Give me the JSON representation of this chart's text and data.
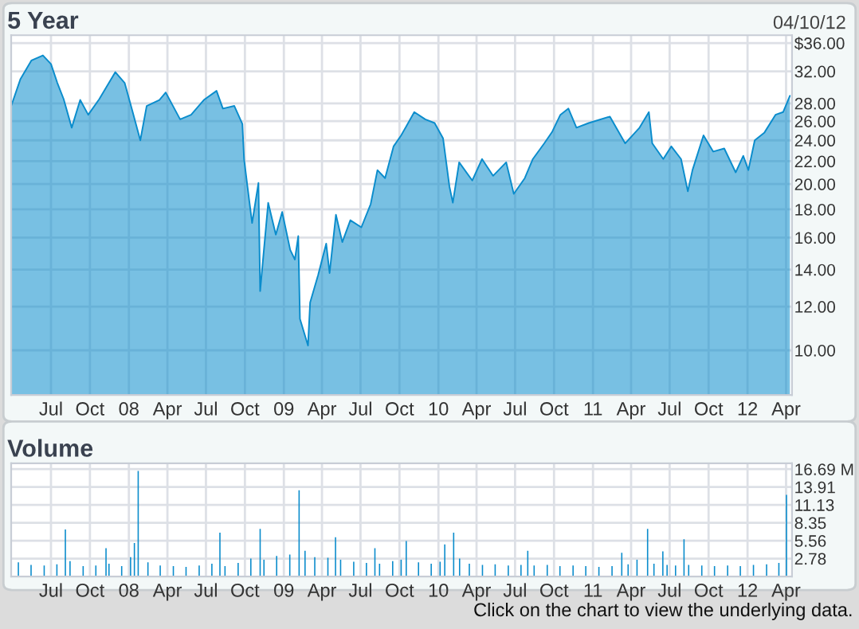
{
  "chart_data": [
    {
      "type": "area",
      "title": "5 Year",
      "annotations": [
        "04/10/12"
      ],
      "color": "#0a8ccc",
      "log": "y",
      "grid": true,
      "legend": false,
      "x": [
        "2007-03-29",
        "2007-04-20",
        "2007-05-16",
        "2007-06-12",
        "2007-07-01",
        "2007-07-16",
        "2007-07-31",
        "2007-08-19",
        "2007-09-08",
        "2007-09-27",
        "2007-10-23",
        "2007-11-30",
        "2007-12-22",
        "2008-01-10",
        "2008-01-28",
        "2008-02-12",
        "2008-03-13",
        "2008-03-28",
        "2008-05-01",
        "2008-05-27",
        "2008-06-26",
        "2008-07-26",
        "2008-08-10",
        "2008-09-06",
        "2008-09-25",
        "2008-09-29",
        "2008-10-07",
        "2008-10-18",
        "2008-11-02",
        "2008-11-06",
        "2008-11-25",
        "2008-12-13",
        "2008-12-28",
        "2009-01-16",
        "2009-01-27",
        "2009-02-04",
        "2009-02-08",
        "2009-02-27",
        "2009-03-04",
        "2009-03-23",
        "2009-04-11",
        "2009-04-19",
        "2009-05-04",
        "2009-05-19",
        "2009-06-07",
        "2009-07-03",
        "2009-07-25",
        "2009-08-10",
        "2009-08-28",
        "2009-09-17",
        "2009-10-05",
        "2009-11-05",
        "2009-12-01",
        "2009-12-23",
        "2010-01-12",
        "2010-01-27",
        "2010-02-04",
        "2010-02-19",
        "2010-03-22",
        "2010-04-14",
        "2010-05-10",
        "2010-06-10",
        "2010-06-28",
        "2010-07-24",
        "2010-08-12",
        "2010-09-08",
        "2010-09-27",
        "2010-10-16",
        "2010-11-04",
        "2010-11-23",
        "2010-12-22",
        "2011-02-10",
        "2011-03-18",
        "2011-04-21",
        "2011-05-13",
        "2011-05-21",
        "2011-06-16",
        "2011-07-05",
        "2011-07-28",
        "2011-08-13",
        "2011-08-24",
        "2011-09-19",
        "2011-10-12",
        "2011-11-07",
        "2011-12-04",
        "2011-12-22",
        "2012-01-03",
        "2012-01-18",
        "2012-02-10",
        "2012-03-07",
        "2012-03-25",
        "2012-04-10"
      ],
      "values": [
        27.7,
        31,
        33.5,
        34.2,
        33,
        30.5,
        28.5,
        25.3,
        28.4,
        26.7,
        28.5,
        31.9,
        30.5,
        27,
        24,
        27.7,
        28.4,
        29.3,
        26.2,
        26.7,
        28.4,
        29.5,
        27.4,
        27.7,
        25.7,
        22.2,
        19.8,
        17,
        20.1,
        12.8,
        18.5,
        16.2,
        17.8,
        15.2,
        14.6,
        16.1,
        11.4,
        10.2,
        12.2,
        13.7,
        15.6,
        13.8,
        17.6,
        15.7,
        17.2,
        16.7,
        18.4,
        21.2,
        20.5,
        23.4,
        24.5,
        27,
        26.2,
        25.8,
        24.2,
        19.8,
        18.5,
        21.9,
        20.3,
        22.2,
        20.7,
        21.9,
        19.2,
        20.5,
        22.2,
        23.7,
        24.9,
        26.7,
        27.4,
        25.3,
        25.8,
        26.5,
        23.7,
        25.3,
        27,
        23.7,
        22.2,
        23.4,
        22.2,
        19.4,
        21.2,
        24.5,
        22.9,
        23.2,
        21,
        22.5,
        21.2,
        24,
        24.8,
        26.7,
        27,
        28.9
      ],
      "xlim": [
        "2007-03-29",
        "2012-04-15"
      ],
      "ylim": [
        8.3,
        37.2
      ],
      "yticks": [
        {
          "value": 10,
          "label": "10.00"
        },
        {
          "value": 12,
          "label": "12.00"
        },
        {
          "value": 14,
          "label": "14.00"
        },
        {
          "value": 16,
          "label": "16.00"
        },
        {
          "value": 18,
          "label": "18.00"
        },
        {
          "value": 20,
          "label": "20.00"
        },
        {
          "value": 22,
          "label": "22.00"
        },
        {
          "value": 24,
          "label": "24.00"
        },
        {
          "value": 26,
          "label": "26.00"
        },
        {
          "value": 28,
          "label": "28.00"
        },
        {
          "value": 32,
          "label": "32.00"
        },
        {
          "value": 36,
          "label": "$36.00"
        }
      ],
      "xticks": [
        {
          "value": "2007-07-01",
          "label": "Jul"
        },
        {
          "value": "2007-10-01",
          "label": "Oct"
        },
        {
          "value": "2008-01-01",
          "label": "08"
        },
        {
          "value": "2008-04-01",
          "label": "Apr"
        },
        {
          "value": "2008-07-01",
          "label": "Jul"
        },
        {
          "value": "2008-10-01",
          "label": "Oct"
        },
        {
          "value": "2009-01-01",
          "label": "09"
        },
        {
          "value": "2009-04-01",
          "label": "Apr"
        },
        {
          "value": "2009-07-01",
          "label": "Jul"
        },
        {
          "value": "2009-10-01",
          "label": "Oct"
        },
        {
          "value": "2010-01-01",
          "label": "10"
        },
        {
          "value": "2010-04-01",
          "label": "Apr"
        },
        {
          "value": "2010-07-01",
          "label": "Jul"
        },
        {
          "value": "2010-10-01",
          "label": "Oct"
        },
        {
          "value": "2011-01-01",
          "label": "11"
        },
        {
          "value": "2011-04-01",
          "label": "Apr"
        },
        {
          "value": "2011-07-01",
          "label": "Jul"
        },
        {
          "value": "2011-10-01",
          "label": "Oct"
        },
        {
          "value": "2012-01-01",
          "label": "12"
        },
        {
          "value": "2012-04-01",
          "label": "Apr"
        }
      ]
    },
    {
      "type": "bar",
      "title": "Volume",
      "annotations": [
        "Click on the chart to view the underlying data."
      ],
      "grid": true,
      "legend": false,
      "series": [
        {
          "color": "#0a8ccc",
          "x": [
            "2007-04-15",
            "2007-05-15",
            "2007-06-15",
            "2007-07-15",
            "2007-08-15",
            "2007-09-15",
            "2007-10-15",
            "2007-11-15",
            "2007-12-15",
            "2008-01-05",
            "2008-02-15",
            "2008-03-15",
            "2008-04-15",
            "2008-05-15",
            "2008-06-15",
            "2008-07-15",
            "2008-08-15",
            "2008-09-15",
            "2008-10-15",
            "2008-11-15",
            "2008-12-15",
            "2009-01-15",
            "2009-02-20",
            "2009-03-15",
            "2009-04-15",
            "2009-05-15",
            "2009-06-15",
            "2009-07-15",
            "2009-08-15",
            "2009-09-15",
            "2009-10-05",
            "2009-11-15",
            "2009-12-15",
            "2010-01-05",
            "2010-02-20",
            "2010-03-15",
            "2010-04-15",
            "2010-05-15",
            "2010-06-15",
            "2010-07-15",
            "2010-08-15",
            "2010-09-15",
            "2010-10-15",
            "2010-11-15",
            "2010-12-15",
            "2011-01-15",
            "2011-02-15",
            "2011-03-25",
            "2011-04-15",
            "2011-05-25",
            "2011-06-25",
            "2011-07-15",
            "2011-08-15",
            "2011-09-15",
            "2011-10-15",
            "2011-11-15",
            "2011-12-15",
            "2012-01-15",
            "2012-02-15",
            "2012-03-15"
          ],
          "values": [
            2.2,
            1.8,
            1.7,
            1.9,
            2.4,
            1.6,
            1.7,
            2.0,
            1.6,
            3.0,
            2.2,
            1.7,
            1.6,
            1.5,
            1.7,
            2.0,
            1.6,
            2.1,
            2.8,
            2.6,
            3.2,
            3.4,
            4.0,
            3.0,
            2.9,
            2.6,
            2.3,
            2.1,
            2.0,
            2.4,
            2.6,
            2.2,
            2.0,
            2.3,
            2.8,
            2.0,
            1.8,
            1.9,
            1.7,
            1.8,
            1.7,
            1.8,
            1.6,
            1.7,
            1.6,
            1.5,
            1.6,
            1.9,
            2.6,
            2.0,
            1.8,
            1.7,
            1.8,
            1.7,
            1.6,
            1.7,
            1.6,
            1.8,
            1.9,
            2.1
          ]
        },
        {
          "color": "#0a8ccc",
          "x": [
            "2007-08-04",
            "2007-11-08",
            "2008-01-14",
            "2008-01-23",
            "2008-08-03",
            "2008-11-06",
            "2009-02-06",
            "2009-05-03",
            "2009-08-04",
            "2009-10-17",
            "2010-01-16",
            "2010-02-06",
            "2010-07-31",
            "2011-03-10",
            "2011-05-10",
            "2011-06-15",
            "2011-08-04",
            "2012-04-02"
          ],
          "values": [
            7.3,
            4.4,
            5.2,
            16.4,
            6.8,
            7.4,
            13.4,
            6.1,
            4.4,
            5.5,
            5.0,
            6.8,
            4.0,
            3.7,
            7.4,
            3.9,
            5.8,
            12.7
          ]
        }
      ],
      "xlim": [
        "2007-03-29",
        "2012-04-15"
      ],
      "ylim": [
        0,
        17.6
      ],
      "yticks": [
        2.78,
        5.56,
        8.35,
        11.13,
        13.91,
        {
          "value": 16.69,
          "label": "16.69 M"
        }
      ],
      "xticks": [
        {
          "value": "2007-07-01",
          "label": "Jul"
        },
        {
          "value": "2007-10-01",
          "label": "Oct"
        },
        {
          "value": "2008-01-01",
          "label": "08"
        },
        {
          "value": "2008-04-01",
          "label": "Apr"
        },
        {
          "value": "2008-07-01",
          "label": "Jul"
        },
        {
          "value": "2008-10-01",
          "label": "Oct"
        },
        {
          "value": "2009-01-01",
          "label": "09"
        },
        {
          "value": "2009-04-01",
          "label": "Apr"
        },
        {
          "value": "2009-07-01",
          "label": "Jul"
        },
        {
          "value": "2009-10-01",
          "label": "Oct"
        },
        {
          "value": "2010-01-01",
          "label": "10"
        },
        {
          "value": "2010-04-01",
          "label": "Apr"
        },
        {
          "value": "2010-07-01",
          "label": "Jul"
        },
        {
          "value": "2010-10-01",
          "label": "Oct"
        },
        {
          "value": "2011-01-01",
          "label": "11"
        },
        {
          "value": "2011-04-01",
          "label": "Apr"
        },
        {
          "value": "2011-07-01",
          "label": "Jul"
        },
        {
          "value": "2011-10-01",
          "label": "Oct"
        },
        {
          "value": "2012-01-01",
          "label": "12"
        },
        {
          "value": "2012-04-01",
          "label": "Apr"
        }
      ]
    }
  ]
}
